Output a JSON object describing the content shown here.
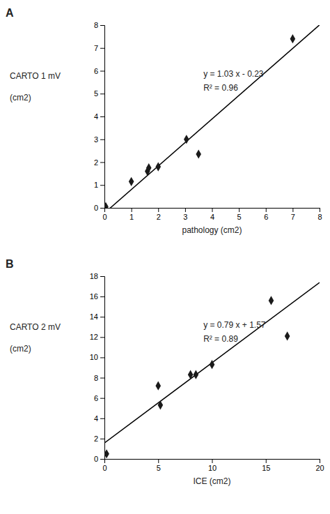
{
  "chart_data": [
    {
      "type": "scatter",
      "label": "A",
      "x_label": "pathology (cm2)",
      "y_label": [
        "CARTO 1 mV",
        "(cm2)"
      ],
      "x": [
        0.05,
        1.0,
        1.6,
        1.65,
        2.0,
        3.05,
        3.5,
        7.0
      ],
      "values": [
        0.05,
        1.15,
        1.6,
        1.75,
        1.8,
        3.0,
        2.35,
        7.4
      ],
      "color": "#1a1a1a",
      "marker": "diamond",
      "fit": {
        "slope": 1.03,
        "intercept": -0.23,
        "color": "#000000"
      },
      "annotations": [
        "y = 1.03 x - 0.23",
        "R² = 0.96"
      ],
      "xlim": [
        0,
        8
      ],
      "ylim": [
        0,
        8
      ],
      "xticks": [
        0,
        1,
        2,
        3,
        4,
        5,
        6,
        7,
        8
      ],
      "yticks": [
        0,
        1,
        2,
        3,
        4,
        5,
        6,
        7,
        8
      ]
    },
    {
      "type": "scatter",
      "label": "B",
      "x_label": "ICE (cm2)",
      "y_label": [
        "CARTO 2 mV",
        "(cm2)"
      ],
      "x": [
        0.2,
        5.0,
        5.2,
        8.0,
        8.5,
        10.0,
        15.5,
        17.0
      ],
      "values": [
        0.5,
        7.2,
        5.3,
        8.3,
        8.3,
        9.3,
        15.6,
        12.1
      ],
      "color": "#1a1a1a",
      "marker": "diamond",
      "fit": {
        "slope": 0.79,
        "intercept": 1.57,
        "color": "#000000"
      },
      "annotations": [
        "y = 0.79 x + 1.57",
        "R² = 0.89"
      ],
      "xlim": [
        0,
        20
      ],
      "ylim": [
        0,
        18
      ],
      "xticks": [
        0,
        5,
        10,
        15,
        20
      ],
      "yticks": [
        0,
        2,
        4,
        6,
        8,
        10,
        12,
        14,
        16,
        18
      ]
    }
  ]
}
